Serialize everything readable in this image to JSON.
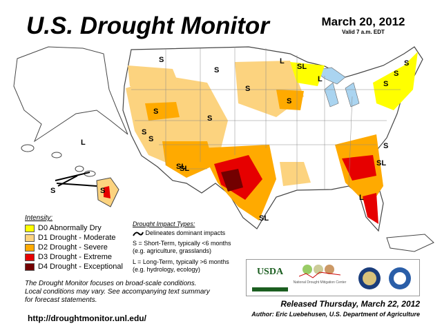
{
  "header": {
    "title": "U.S. Drought Monitor",
    "date": "March 20, 2012",
    "valid": "Valid 7 a.m. EDT"
  },
  "legend": {
    "title": "Intensity:",
    "items": [
      {
        "label": "D0 Abnormally Dry",
        "color": "#ffff00"
      },
      {
        "label": "D1 Drought - Moderate",
        "color": "#fcd37f"
      },
      {
        "label": "D2 Drought - Severe",
        "color": "#ffaa00"
      },
      {
        "label": "D3 Drought - Extreme",
        "color": "#e60000"
      },
      {
        "label": "D4 Drought - Exceptional",
        "color": "#730000"
      }
    ]
  },
  "impacts": {
    "title": "Drought Impact Types:",
    "delineates": "Delineates dominant impacts",
    "short": "S = Short-Term, typically <6 months",
    "short_eg": "(e.g. agriculture, grasslands)",
    "long": "L = Long-Term, typically >6 months",
    "long_eg": "(e.g. hydrology, ecology)"
  },
  "map_labels": [
    "S",
    "S",
    "S",
    "S",
    "S",
    "SL",
    "SL",
    "S",
    "L",
    "S",
    "SL",
    "S",
    "SL",
    "S",
    "L",
    "L",
    "S",
    "S",
    "SL",
    "S",
    "L",
    "S",
    "S"
  ],
  "logos": {
    "usda": "USDA",
    "ndmc": "National Drought Mitigation Center"
  },
  "note": [
    "The Drought Monitor focuses on broad-scale conditions.",
    "Local conditions may vary. See accompanying text summary",
    "for forecast statements."
  ],
  "footer": {
    "released": "Released Thursday, March 22, 2012",
    "author": "Author: Eric Luebehusen, U.S. Department of Agriculture",
    "url": "http://droughtmonitor.unl.edu/"
  }
}
